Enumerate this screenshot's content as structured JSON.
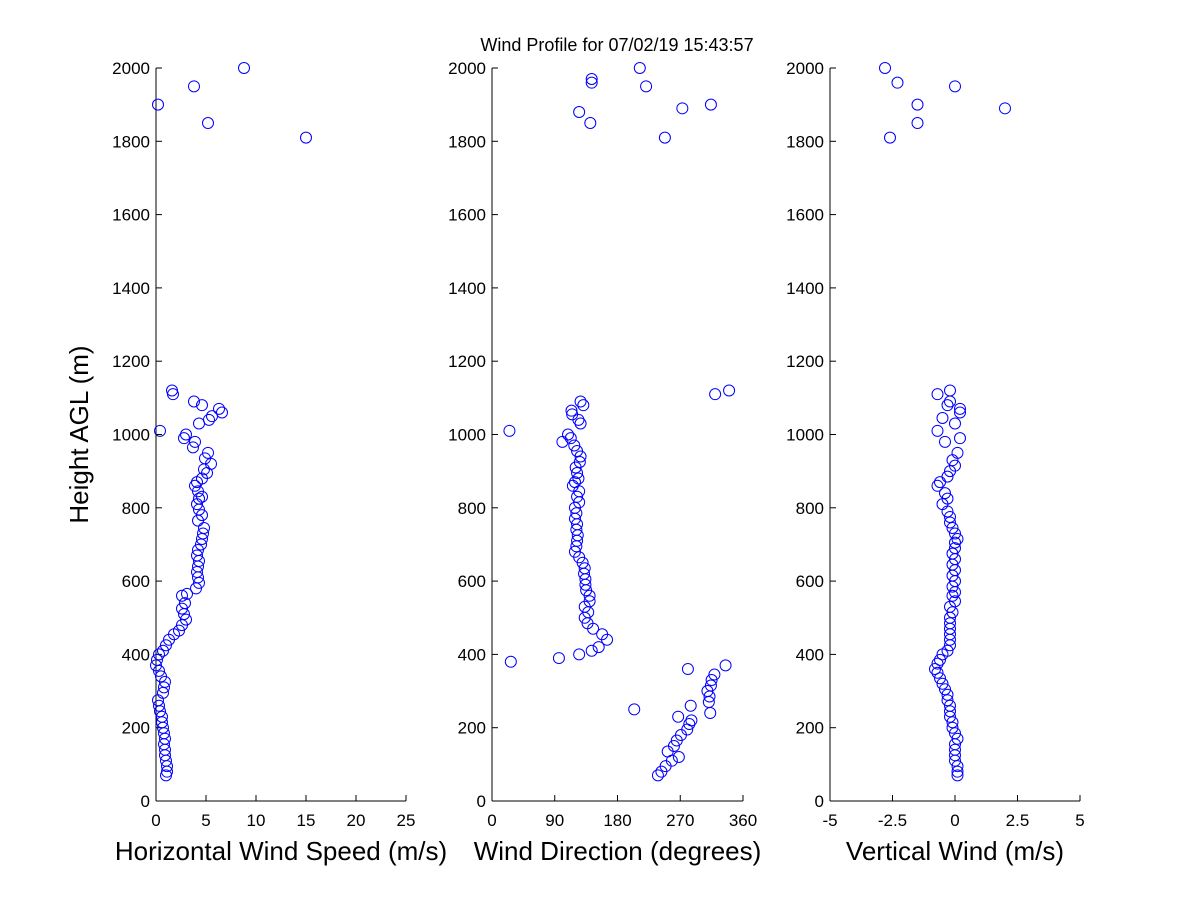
{
  "figure_title": "Wind Profile for  07/02/19 15:43:57",
  "chart_data": [
    {
      "type": "scatter",
      "title": "",
      "xlabel": "Horizontal Wind Speed (m/s)",
      "ylabel": "Height AGL (m)",
      "xlim": [
        0,
        25
      ],
      "ylim": [
        0,
        2000
      ],
      "xticks": [
        0,
        5,
        10,
        15,
        20,
        25
      ],
      "xtick_labels": [
        "0",
        "5",
        "10",
        "15",
        "20",
        "25"
      ],
      "yticks": [
        0,
        200,
        400,
        600,
        800,
        1000,
        1200,
        1400,
        1600,
        1800,
        2000
      ],
      "ytick_labels": [
        "0",
        "200",
        "400",
        "600",
        "800",
        "1000",
        "1200",
        "1400",
        "1600",
        "1800",
        "2000"
      ],
      "grid": false,
      "marker": "open-circle",
      "color": "#0000ff",
      "points": [
        {
          "x": 1.0,
          "y": 70
        },
        {
          "x": 1.1,
          "y": 80
        },
        {
          "x": 1.1,
          "y": 95
        },
        {
          "x": 1.0,
          "y": 110
        },
        {
          "x": 0.9,
          "y": 125
        },
        {
          "x": 0.9,
          "y": 140
        },
        {
          "x": 0.8,
          "y": 155
        },
        {
          "x": 0.9,
          "y": 170
        },
        {
          "x": 0.8,
          "y": 185
        },
        {
          "x": 0.7,
          "y": 200
        },
        {
          "x": 0.6,
          "y": 215
        },
        {
          "x": 0.6,
          "y": 230
        },
        {
          "x": 0.4,
          "y": 245
        },
        {
          "x": 0.3,
          "y": 260
        },
        {
          "x": 0.2,
          "y": 275
        },
        {
          "x": 0.7,
          "y": 295
        },
        {
          "x": 0.8,
          "y": 310
        },
        {
          "x": 0.9,
          "y": 325
        },
        {
          "x": 0.5,
          "y": 340
        },
        {
          "x": 0.3,
          "y": 355
        },
        {
          "x": 0.0,
          "y": 370
        },
        {
          "x": 0.1,
          "y": 385
        },
        {
          "x": 0.3,
          "y": 400
        },
        {
          "x": 0.7,
          "y": 410
        },
        {
          "x": 1.0,
          "y": 425
        },
        {
          "x": 1.3,
          "y": 440
        },
        {
          "x": 1.8,
          "y": 455
        },
        {
          "x": 2.3,
          "y": 465
        },
        {
          "x": 2.6,
          "y": 480
        },
        {
          "x": 3.0,
          "y": 495
        },
        {
          "x": 2.8,
          "y": 510
        },
        {
          "x": 2.6,
          "y": 525
        },
        {
          "x": 2.9,
          "y": 540
        },
        {
          "x": 2.6,
          "y": 560
        },
        {
          "x": 3.1,
          "y": 565
        },
        {
          "x": 4.0,
          "y": 580
        },
        {
          "x": 4.3,
          "y": 595
        },
        {
          "x": 4.2,
          "y": 610
        },
        {
          "x": 4.1,
          "y": 625
        },
        {
          "x": 4.2,
          "y": 640
        },
        {
          "x": 4.3,
          "y": 655
        },
        {
          "x": 4.1,
          "y": 670
        },
        {
          "x": 4.2,
          "y": 685
        },
        {
          "x": 4.5,
          "y": 700
        },
        {
          "x": 4.6,
          "y": 715
        },
        {
          "x": 4.7,
          "y": 730
        },
        {
          "x": 4.8,
          "y": 745
        },
        {
          "x": 4.2,
          "y": 765
        },
        {
          "x": 4.6,
          "y": 780
        },
        {
          "x": 4.3,
          "y": 795
        },
        {
          "x": 4.1,
          "y": 810
        },
        {
          "x": 4.3,
          "y": 825
        },
        {
          "x": 4.6,
          "y": 830
        },
        {
          "x": 4.2,
          "y": 845
        },
        {
          "x": 3.9,
          "y": 860
        },
        {
          "x": 4.1,
          "y": 870
        },
        {
          "x": 4.6,
          "y": 880
        },
        {
          "x": 5.1,
          "y": 895
        },
        {
          "x": 4.8,
          "y": 905
        },
        {
          "x": 5.5,
          "y": 920
        },
        {
          "x": 4.9,
          "y": 935
        },
        {
          "x": 5.2,
          "y": 950
        },
        {
          "x": 3.7,
          "y": 965
        },
        {
          "x": 3.9,
          "y": 980
        },
        {
          "x": 2.8,
          "y": 990
        },
        {
          "x": 3.0,
          "y": 1000
        },
        {
          "x": 0.4,
          "y": 1010
        },
        {
          "x": 4.3,
          "y": 1030
        },
        {
          "x": 5.3,
          "y": 1040
        },
        {
          "x": 5.6,
          "y": 1050
        },
        {
          "x": 6.6,
          "y": 1060
        },
        {
          "x": 6.3,
          "y": 1070
        },
        {
          "x": 4.6,
          "y": 1080
        },
        {
          "x": 3.8,
          "y": 1090
        },
        {
          "x": 1.7,
          "y": 1110
        },
        {
          "x": 1.6,
          "y": 1120
        },
        {
          "x": 15.0,
          "y": 1810
        },
        {
          "x": 5.2,
          "y": 1850
        },
        {
          "x": 0.2,
          "y": 1900
        },
        {
          "x": 3.8,
          "y": 1950
        },
        {
          "x": 8.8,
          "y": 2000
        }
      ]
    },
    {
      "type": "scatter",
      "title": "",
      "xlabel": "Wind Direction (degrees)",
      "ylabel": "",
      "xlim": [
        0,
        360
      ],
      "ylim": [
        0,
        2000
      ],
      "xticks": [
        0,
        90,
        180,
        270,
        360
      ],
      "xtick_labels": [
        "0",
        "90",
        "180",
        "270",
        "360"
      ],
      "yticks": [
        0,
        200,
        400,
        600,
        800,
        1000,
        1200,
        1400,
        1600,
        1800,
        2000
      ],
      "ytick_labels": [
        "0",
        "200",
        "400",
        "600",
        "800",
        "1000",
        "1200",
        "1400",
        "1600",
        "1800",
        "2000"
      ],
      "grid": false,
      "marker": "open-circle",
      "color": "#0000ff",
      "points": [
        {
          "x": 238,
          "y": 70
        },
        {
          "x": 243,
          "y": 80
        },
        {
          "x": 249,
          "y": 95
        },
        {
          "x": 258,
          "y": 110
        },
        {
          "x": 268,
          "y": 120
        },
        {
          "x": 252,
          "y": 135
        },
        {
          "x": 261,
          "y": 150
        },
        {
          "x": 265,
          "y": 165
        },
        {
          "x": 271,
          "y": 180
        },
        {
          "x": 280,
          "y": 195
        },
        {
          "x": 283,
          "y": 210
        },
        {
          "x": 286,
          "y": 220
        },
        {
          "x": 267,
          "y": 230
        },
        {
          "x": 313,
          "y": 240
        },
        {
          "x": 204,
          "y": 250
        },
        {
          "x": 285,
          "y": 260
        },
        {
          "x": 311,
          "y": 270
        },
        {
          "x": 312,
          "y": 285
        },
        {
          "x": 309,
          "y": 300
        },
        {
          "x": 314,
          "y": 315
        },
        {
          "x": 315,
          "y": 330
        },
        {
          "x": 319,
          "y": 345
        },
        {
          "x": 281,
          "y": 360
        },
        {
          "x": 335,
          "y": 370
        },
        {
          "x": 27,
          "y": 380
        },
        {
          "x": 96,
          "y": 390
        },
        {
          "x": 125,
          "y": 400
        },
        {
          "x": 143,
          "y": 410
        },
        {
          "x": 153,
          "y": 420
        },
        {
          "x": 165,
          "y": 440
        },
        {
          "x": 158,
          "y": 455
        },
        {
          "x": 145,
          "y": 470
        },
        {
          "x": 137,
          "y": 485
        },
        {
          "x": 133,
          "y": 500
        },
        {
          "x": 138,
          "y": 515
        },
        {
          "x": 133,
          "y": 530
        },
        {
          "x": 140,
          "y": 545
        },
        {
          "x": 140,
          "y": 560
        },
        {
          "x": 135,
          "y": 575
        },
        {
          "x": 134,
          "y": 590
        },
        {
          "x": 134,
          "y": 605
        },
        {
          "x": 132,
          "y": 620
        },
        {
          "x": 133,
          "y": 635
        },
        {
          "x": 130,
          "y": 650
        },
        {
          "x": 125,
          "y": 665
        },
        {
          "x": 119,
          "y": 680
        },
        {
          "x": 121,
          "y": 695
        },
        {
          "x": 122,
          "y": 710
        },
        {
          "x": 123,
          "y": 725
        },
        {
          "x": 121,
          "y": 740
        },
        {
          "x": 122,
          "y": 755
        },
        {
          "x": 119,
          "y": 770
        },
        {
          "x": 121,
          "y": 785
        },
        {
          "x": 119,
          "y": 800
        },
        {
          "x": 125,
          "y": 815
        },
        {
          "x": 122,
          "y": 830
        },
        {
          "x": 125,
          "y": 845
        },
        {
          "x": 116,
          "y": 860
        },
        {
          "x": 119,
          "y": 870
        },
        {
          "x": 124,
          "y": 880
        },
        {
          "x": 122,
          "y": 895
        },
        {
          "x": 120,
          "y": 910
        },
        {
          "x": 126,
          "y": 925
        },
        {
          "x": 127,
          "y": 940
        },
        {
          "x": 122,
          "y": 955
        },
        {
          "x": 118,
          "y": 970
        },
        {
          "x": 101,
          "y": 980
        },
        {
          "x": 113,
          "y": 990
        },
        {
          "x": 109,
          "y": 1000
        },
        {
          "x": 25,
          "y": 1010
        },
        {
          "x": 127,
          "y": 1030
        },
        {
          "x": 124,
          "y": 1040
        },
        {
          "x": 115,
          "y": 1055
        },
        {
          "x": 114,
          "y": 1065
        },
        {
          "x": 131,
          "y": 1080
        },
        {
          "x": 127,
          "y": 1090
        },
        {
          "x": 320,
          "y": 1110
        },
        {
          "x": 340,
          "y": 1120
        },
        {
          "x": 248,
          "y": 1810
        },
        {
          "x": 141,
          "y": 1850
        },
        {
          "x": 125,
          "y": 1880
        },
        {
          "x": 273,
          "y": 1890
        },
        {
          "x": 314,
          "y": 1900
        },
        {
          "x": 221,
          "y": 1950
        },
        {
          "x": 143,
          "y": 1960
        },
        {
          "x": 143,
          "y": 1970
        },
        {
          "x": 212,
          "y": 2000
        }
      ]
    },
    {
      "type": "scatter",
      "title": "",
      "xlabel": "Vertical Wind (m/s)",
      "ylabel": "",
      "xlim": [
        -5,
        5
      ],
      "ylim": [
        0,
        2000
      ],
      "xticks": [
        -5,
        -2.5,
        0,
        2.5,
        5
      ],
      "xtick_labels": [
        "-5",
        "-2.5",
        "0",
        "2.5",
        "5"
      ],
      "yticks": [
        0,
        200,
        400,
        600,
        800,
        1000,
        1200,
        1400,
        1600,
        1800,
        2000
      ],
      "ytick_labels": [
        "0",
        "200",
        "400",
        "600",
        "800",
        "1000",
        "1200",
        "1400",
        "1600",
        "1800",
        "2000"
      ],
      "grid": false,
      "marker": "open-circle",
      "color": "#0000ff",
      "points": [
        {
          "x": 0.1,
          "y": 70
        },
        {
          "x": 0.1,
          "y": 80
        },
        {
          "x": 0.1,
          "y": 95
        },
        {
          "x": 0.0,
          "y": 110
        },
        {
          "x": 0.0,
          "y": 125
        },
        {
          "x": 0.0,
          "y": 140
        },
        {
          "x": 0.0,
          "y": 155
        },
        {
          "x": 0.1,
          "y": 170
        },
        {
          "x": 0.0,
          "y": 185
        },
        {
          "x": -0.1,
          "y": 200
        },
        {
          "x": -0.1,
          "y": 215
        },
        {
          "x": -0.2,
          "y": 230
        },
        {
          "x": -0.2,
          "y": 245
        },
        {
          "x": -0.2,
          "y": 260
        },
        {
          "x": -0.3,
          "y": 275
        },
        {
          "x": -0.3,
          "y": 290
        },
        {
          "x": -0.4,
          "y": 305
        },
        {
          "x": -0.5,
          "y": 320
        },
        {
          "x": -0.6,
          "y": 335
        },
        {
          "x": -0.7,
          "y": 350
        },
        {
          "x": -0.8,
          "y": 360
        },
        {
          "x": -0.7,
          "y": 375
        },
        {
          "x": -0.6,
          "y": 385
        },
        {
          "x": -0.5,
          "y": 400
        },
        {
          "x": -0.3,
          "y": 410
        },
        {
          "x": -0.2,
          "y": 425
        },
        {
          "x": -0.2,
          "y": 440
        },
        {
          "x": -0.2,
          "y": 455
        },
        {
          "x": -0.2,
          "y": 470
        },
        {
          "x": -0.2,
          "y": 485
        },
        {
          "x": -0.2,
          "y": 500
        },
        {
          "x": -0.1,
          "y": 515
        },
        {
          "x": -0.2,
          "y": 530
        },
        {
          "x": 0.0,
          "y": 545
        },
        {
          "x": -0.1,
          "y": 560
        },
        {
          "x": 0.0,
          "y": 570
        },
        {
          "x": -0.1,
          "y": 585
        },
        {
          "x": 0.0,
          "y": 600
        },
        {
          "x": -0.1,
          "y": 615
        },
        {
          "x": 0.0,
          "y": 630
        },
        {
          "x": -0.1,
          "y": 645
        },
        {
          "x": 0.0,
          "y": 660
        },
        {
          "x": -0.1,
          "y": 675
        },
        {
          "x": 0.0,
          "y": 690
        },
        {
          "x": 0.0,
          "y": 705
        },
        {
          "x": 0.1,
          "y": 715
        },
        {
          "x": 0.0,
          "y": 730
        },
        {
          "x": -0.1,
          "y": 745
        },
        {
          "x": -0.2,
          "y": 760
        },
        {
          "x": -0.2,
          "y": 775
        },
        {
          "x": -0.3,
          "y": 790
        },
        {
          "x": -0.5,
          "y": 810
        },
        {
          "x": -0.3,
          "y": 825
        },
        {
          "x": -0.4,
          "y": 840
        },
        {
          "x": -0.7,
          "y": 860
        },
        {
          "x": -0.6,
          "y": 870
        },
        {
          "x": -0.3,
          "y": 885
        },
        {
          "x": -0.2,
          "y": 900
        },
        {
          "x": 0.0,
          "y": 915
        },
        {
          "x": -0.1,
          "y": 930
        },
        {
          "x": 0.1,
          "y": 950
        },
        {
          "x": -0.4,
          "y": 980
        },
        {
          "x": 0.2,
          "y": 990
        },
        {
          "x": -0.7,
          "y": 1010
        },
        {
          "x": 0.0,
          "y": 1030
        },
        {
          "x": -0.5,
          "y": 1045
        },
        {
          "x": 0.2,
          "y": 1060
        },
        {
          "x": 0.2,
          "y": 1070
        },
        {
          "x": -0.3,
          "y": 1080
        },
        {
          "x": -0.2,
          "y": 1090
        },
        {
          "x": -0.7,
          "y": 1110
        },
        {
          "x": -0.2,
          "y": 1120
        },
        {
          "x": -2.6,
          "y": 1810
        },
        {
          "x": -1.5,
          "y": 1850
        },
        {
          "x": 2.0,
          "y": 1890
        },
        {
          "x": -1.5,
          "y": 1900
        },
        {
          "x": 0.0,
          "y": 1950
        },
        {
          "x": -2.3,
          "y": 1960
        },
        {
          "x": -2.8,
          "y": 2000
        }
      ]
    }
  ]
}
